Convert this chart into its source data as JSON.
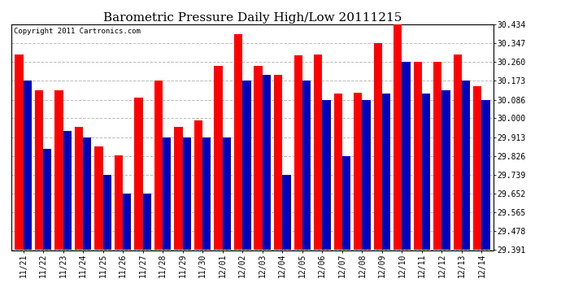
{
  "title": "Barometric Pressure Daily High/Low 20111215",
  "copyright": "Copyright 2011 Cartronics.com",
  "dates": [
    "11/21",
    "11/22",
    "11/23",
    "11/24",
    "11/25",
    "11/26",
    "11/27",
    "11/28",
    "11/29",
    "11/30",
    "12/01",
    "12/02",
    "12/03",
    "12/04",
    "12/05",
    "12/06",
    "12/07",
    "12/08",
    "12/09",
    "12/10",
    "12/11",
    "12/12",
    "12/13",
    "12/14"
  ],
  "highs": [
    30.295,
    30.13,
    30.13,
    29.96,
    29.87,
    29.83,
    30.095,
    30.173,
    29.96,
    29.99,
    30.243,
    30.39,
    30.243,
    30.2,
    30.29,
    30.295,
    30.115,
    30.12,
    30.347,
    30.434,
    30.26,
    30.26,
    30.295,
    30.15
  ],
  "lows": [
    30.173,
    29.86,
    29.94,
    29.913,
    29.739,
    29.652,
    29.652,
    29.913,
    29.913,
    29.913,
    29.913,
    30.173,
    30.2,
    29.739,
    30.173,
    30.086,
    29.826,
    30.086,
    30.113,
    30.26,
    30.113,
    30.13,
    30.173,
    30.086
  ],
  "high_color": "#ff0000",
  "low_color": "#0000bb",
  "background_color": "#ffffff",
  "grid_color": "#bbbbbb",
  "yticks": [
    29.391,
    29.478,
    29.565,
    29.652,
    29.739,
    29.826,
    29.913,
    30.0,
    30.086,
    30.173,
    30.26,
    30.347,
    30.434
  ],
  "ymin": 29.391,
  "ymax": 30.434,
  "bar_width": 0.42,
  "title_fontsize": 11,
  "tick_fontsize": 7,
  "label_fontsize": 6.5
}
